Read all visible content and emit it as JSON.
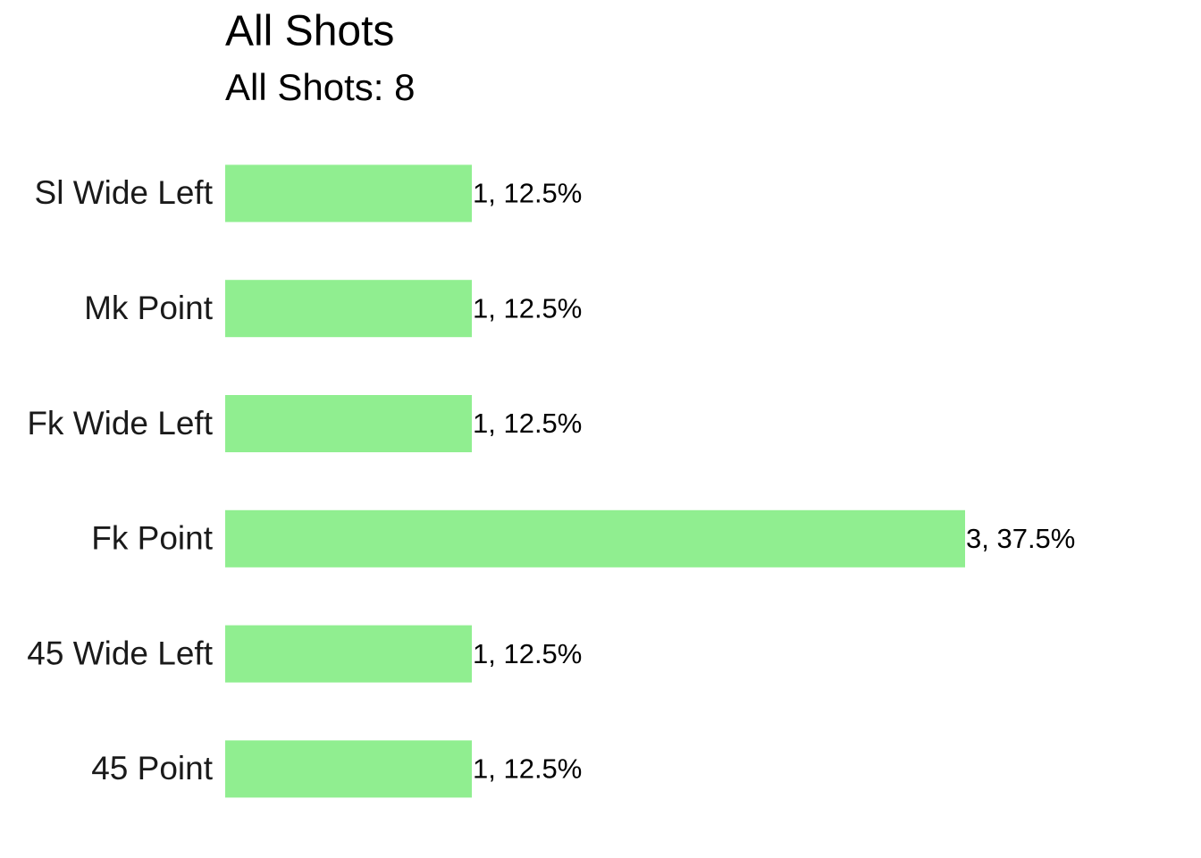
{
  "chart_data": {
    "type": "bar",
    "orientation": "horizontal",
    "title": "All Shots",
    "subtitle": "All Shots: 8",
    "categories": [
      "Sl Wide Left",
      "Mk Point",
      "Fk Wide Left",
      "Fk Point",
      "45 Wide Left",
      "45 Point"
    ],
    "values": [
      1,
      1,
      1,
      3,
      1,
      1
    ],
    "value_labels": [
      "1, 12.5%",
      "1, 12.5%",
      "1, 12.5%",
      "3, 37.5%",
      "1, 12.5%",
      "1, 12.5%"
    ],
    "color": "#90ee90"
  }
}
